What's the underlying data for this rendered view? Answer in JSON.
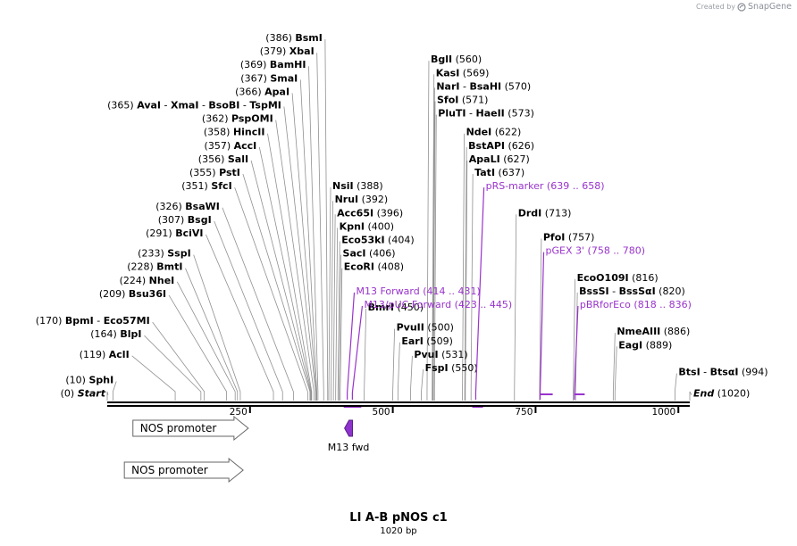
{
  "watermark": {
    "created_by": "Created by",
    "brand": "SnapGene"
  },
  "map": {
    "name": "LI A-B pNOS   c1",
    "length_label": "1020 bp",
    "length": 1020,
    "ticks": [
      "250",
      "500",
      "750",
      "1000"
    ],
    "tick_values": [
      250,
      500,
      750,
      1000
    ],
    "colors": {
      "line": "#000000",
      "leader": "#909090",
      "primer": "#9933cc",
      "feature_fill": "#ffffff",
      "feature_stroke": "#666666"
    }
  },
  "sites": [
    {
      "id": "bsmi",
      "num": "(386)",
      "label": "BsmI",
      "pos": 386,
      "row": 0
    },
    {
      "id": "xbai",
      "num": "(379)",
      "label": "XbaI",
      "pos": 379,
      "row": 1
    },
    {
      "id": "bamhi",
      "num": "(369)",
      "label": "BamHI",
      "pos": 369,
      "row": 2
    },
    {
      "id": "smai",
      "num": "(367)",
      "label": "SmaI",
      "pos": 367,
      "row": 3
    },
    {
      "id": "apai",
      "num": "(366)",
      "label": "ApaI",
      "pos": 366,
      "row": 4
    },
    {
      "id": "avai",
      "num": "(365)",
      "label": "AvaI",
      "extra": [
        "XmaI",
        "BsoBI",
        "TspMI"
      ],
      "pos": 365,
      "row": 5
    },
    {
      "id": "psp",
      "num": "(362)",
      "label": "PspOMI",
      "pos": 362,
      "row": 6
    },
    {
      "id": "hincii",
      "num": "(358)",
      "label": "HincII",
      "pos": 358,
      "row": 7
    },
    {
      "id": "acci",
      "num": "(357)",
      "label": "AccI",
      "pos": 357,
      "row": 8
    },
    {
      "id": "sali",
      "num": "(356)",
      "label": "SalI",
      "pos": 356,
      "row": 9
    },
    {
      "id": "psti",
      "num": "(355)",
      "label": "PstI",
      "pos": 355,
      "row": 10
    },
    {
      "id": "sfci",
      "num": "(351)",
      "label": "SfcI",
      "pos": 351,
      "row": 11
    },
    {
      "id": "bsawi",
      "num": "(326)",
      "label": "BsaWI",
      "pos": 326,
      "row": 12.5
    },
    {
      "id": "bsgi",
      "num": "(307)",
      "label": "BsgI",
      "pos": 307,
      "row": 13.5
    },
    {
      "id": "bcivi",
      "num": "(291)",
      "label": "BciVI",
      "pos": 291,
      "row": 14.5
    },
    {
      "id": "sspi",
      "num": "(233)",
      "label": "SspI",
      "pos": 233,
      "row": 16
    },
    {
      "id": "bmti",
      "num": "(228)",
      "label": "BmtI",
      "pos": 228,
      "row": 17
    },
    {
      "id": "nhei",
      "num": "(224)",
      "label": "NheI",
      "pos": 224,
      "row": 18
    },
    {
      "id": "bsu36i",
      "num": "(209)",
      "label": "Bsu36I",
      "pos": 209,
      "row": 19
    },
    {
      "id": "bpmi",
      "num": "(170)",
      "label": "BpmI",
      "extra": [
        "Eco57MI"
      ],
      "pos": 170,
      "row": 21
    },
    {
      "id": "blpi",
      "num": "(164)",
      "label": "BlpI",
      "pos": 164,
      "row": 22
    },
    {
      "id": "acli",
      "num": "(119)",
      "label": "AclI",
      "pos": 119,
      "row": 23.5
    },
    {
      "id": "sphi",
      "num": "(10)",
      "label": "SphI",
      "pos": 10,
      "row": 25.4
    },
    {
      "id": "start",
      "num": "(0)",
      "label": "Start",
      "pos": 0,
      "row": 26.4,
      "italic": true
    },
    {
      "id": "nsii",
      "num": "(388)",
      "label": "NsiI",
      "pos": 388,
      "row": 11,
      "side": "right"
    },
    {
      "id": "nrui",
      "num": "(392)",
      "label": "NruI",
      "pos": 392,
      "row": 12,
      "side": "right"
    },
    {
      "id": "acc65i",
      "num": "(396)",
      "label": "Acc65I",
      "pos": 396,
      "row": 13,
      "side": "right"
    },
    {
      "id": "kpni",
      "num": "(400)",
      "label": "KpnI",
      "pos": 400,
      "row": 14,
      "side": "right"
    },
    {
      "id": "eco53ki",
      "num": "(404)",
      "label": "Eco53kI",
      "pos": 404,
      "row": 15,
      "side": "right"
    },
    {
      "id": "saci",
      "num": "(406)",
      "label": "SacI",
      "pos": 406,
      "row": 16,
      "side": "right"
    },
    {
      "id": "ecori",
      "num": "(408)",
      "label": "EcoRI",
      "pos": 408,
      "row": 17,
      "side": "right"
    },
    {
      "id": "bmri",
      "num": "(450)",
      "label": "BmrI",
      "pos": 450,
      "row": 20,
      "side": "right"
    },
    {
      "id": "pvuii",
      "num": "(500)",
      "label": "PvuII",
      "pos": 500,
      "row": 21.5,
      "side": "right"
    },
    {
      "id": "eari",
      "num": "(509)",
      "label": "EarI",
      "pos": 509,
      "row": 22.5,
      "side": "right"
    },
    {
      "id": "pvui",
      "num": "(531)",
      "label": "PvuI",
      "pos": 531,
      "row": 23.5,
      "side": "right"
    },
    {
      "id": "fspi",
      "num": "(550)",
      "label": "FspI",
      "pos": 550,
      "row": 24.5,
      "side": "right"
    },
    {
      "id": "bgli",
      "num": "(560)",
      "label": "BglI",
      "pos": 560,
      "row": 1.6,
      "side": "right"
    },
    {
      "id": "kasi",
      "num": "(569)",
      "label": "KasI",
      "pos": 569,
      "row": 2.6,
      "side": "right"
    },
    {
      "id": "nari",
      "num": "(570)",
      "label": "NarI",
      "extra": [
        "BsaHI"
      ],
      "pos": 570,
      "row": 3.6,
      "side": "right"
    },
    {
      "id": "sfoi",
      "num": "(571)",
      "label": "SfoI",
      "pos": 571,
      "row": 4.6,
      "side": "right"
    },
    {
      "id": "pluti",
      "num": "(573)",
      "label": "PluTI",
      "extra": [
        "HaeII"
      ],
      "pos": 573,
      "row": 5.6,
      "side": "right"
    },
    {
      "id": "ndei",
      "num": "(622)",
      "label": "NdeI",
      "pos": 622,
      "row": 7,
      "side": "right"
    },
    {
      "id": "bstapi",
      "num": "(626)",
      "label": "BstAPI",
      "pos": 626,
      "row": 8,
      "side": "right"
    },
    {
      "id": "apali",
      "num": "(627)",
      "label": "ApaLI",
      "pos": 627,
      "row": 9,
      "side": "right"
    },
    {
      "id": "tati",
      "num": "(637)",
      "label": "TatI",
      "pos": 637,
      "row": 10,
      "side": "right"
    },
    {
      "id": "drdi",
      "num": "(713)",
      "label": "DrdI",
      "pos": 713,
      "row": 13,
      "side": "right"
    },
    {
      "id": "pfoi",
      "num": "(757)",
      "label": "PfoI",
      "pos": 757,
      "row": 14.8,
      "side": "right"
    },
    {
      "id": "eco0109i",
      "num": "(816)",
      "label": "EcoO109I",
      "pos": 816,
      "row": 17.8,
      "side": "right"
    },
    {
      "id": "bsssi",
      "num": "(820)",
      "label": "BssSI",
      "extra": [
        "BssSαI"
      ],
      "pos": 820,
      "row": 18.8,
      "side": "right"
    },
    {
      "id": "nmeaiii",
      "num": "(886)",
      "label": "NmeAIII",
      "pos": 886,
      "row": 21.8,
      "side": "right"
    },
    {
      "id": "eagi",
      "num": "(889)",
      "label": "EagI",
      "pos": 889,
      "row": 22.8,
      "side": "right"
    },
    {
      "id": "btsi",
      "num": "(994)",
      "label": "BtsI",
      "extra": [
        "BtsαI"
      ],
      "pos": 994,
      "row": 24.8,
      "side": "right"
    },
    {
      "id": "end",
      "num": "(1020)",
      "label": "End",
      "pos": 1020,
      "row": 26.4,
      "side": "right",
      "italic": true
    }
  ],
  "primers": [
    {
      "id": "prs-marker",
      "label": "pRS-marker",
      "range": "(639 .. 658)",
      "start": 639,
      "end": 658,
      "row": 11,
      "dir": 1
    },
    {
      "id": "pgex3",
      "label": "pGEX 3'",
      "range": "(758 .. 780)",
      "start": 758,
      "end": 780,
      "row": 15.8,
      "dir": -1
    },
    {
      "id": "m13fwd",
      "label": "M13 Forward",
      "range": "(414 .. 431)",
      "start": 414,
      "end": 431,
      "row": 18.8,
      "dir": 1
    },
    {
      "id": "m13puc",
      "label": "M13/pUC Forward",
      "range": "(423 .. 445)",
      "start": 423,
      "end": 445,
      "row": 19.8,
      "dir": 1
    },
    {
      "id": "pbrforeco",
      "label": "pBRforEco",
      "range": "(818 .. 836)",
      "start": 818,
      "end": 836,
      "row": 19.8,
      "dir": -1
    }
  ],
  "features": [
    {
      "id": "nos-promoter-1",
      "label": "NOS promoter",
      "start": 45,
      "end": 247,
      "lane": 0
    },
    {
      "id": "nos-promoter-2",
      "label": "NOS promoter",
      "start": 30,
      "end": 238,
      "lane": 1
    },
    {
      "id": "m13-fwd",
      "label": "M13 fwd",
      "start": 414,
      "end": 431,
      "lane": 0,
      "small": true
    }
  ]
}
